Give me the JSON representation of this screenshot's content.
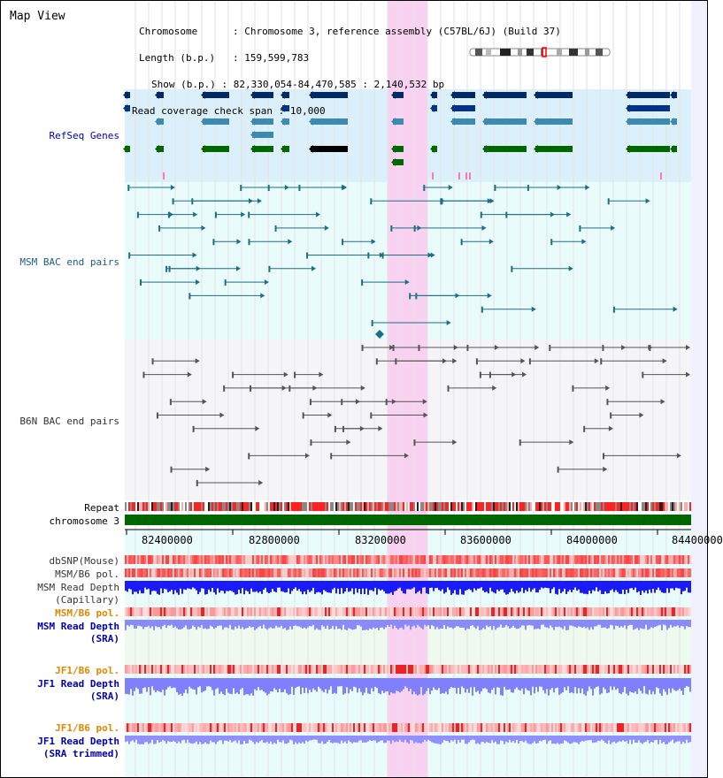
{
  "page": {
    "title": "Map View"
  },
  "info": [
    {
      "label": "Chromosome",
      "value": "Chromosome 3, reference assembly (C57BL/6J) (Build 37)"
    },
    {
      "label": "Length (b.p.)",
      "value": "159,599,783"
    },
    {
      "label": "Show (b.p.)",
      "value": "82,330,054-84,470,585 : 2,140,532 bp"
    },
    {
      "label": "Read coverage check span",
      "value": "10,000"
    }
  ],
  "info_sep": ":",
  "tracks": {
    "refseq": "RefSeq Genes",
    "msm_bac": "MSM BAC end pairs",
    "b6n_bac": "B6N BAC end pairs",
    "repeat": "Repeat",
    "chromosome": "chromosome 3",
    "dbsnp": "dbSNP(Mouse)",
    "msm_pol": "MSM/B6 pol.",
    "msm_depth_cap_1": "MSM Read Depth",
    "msm_depth_cap_2": "(Capillary)",
    "msm_pol_sra": "MSM/B6 pol.",
    "msm_depth_sra_1": "MSM Read Depth",
    "msm_depth_sra_2": "(SRA)",
    "jf1_pol": "JF1/B6 pol.",
    "jf1_depth_1": "JF1 Read Depth",
    "jf1_depth_2": "(SRA)",
    "jf1_pol_2": "JF1/B6 pol.",
    "jf1_depth_trim_1": "JF1 Read Depth",
    "jf1_depth_trim_2": "(SRA trimmed)"
  },
  "axis": {
    "ticks": [
      "82400000",
      "82800000",
      "83200000",
      "83600000",
      "84000000",
      "84400000"
    ]
  },
  "colors": {
    "refseq_bg": "#dcf0fb",
    "msm_bg": "#e8fbfb",
    "b6n_bg": "#f4f4f8",
    "highlight": "#f9c8f0",
    "chromosome": "#006600",
    "depth_blue": "#1a1aff",
    "depth_light": "#8888ff",
    "snp_red": "#ff5555"
  }
}
